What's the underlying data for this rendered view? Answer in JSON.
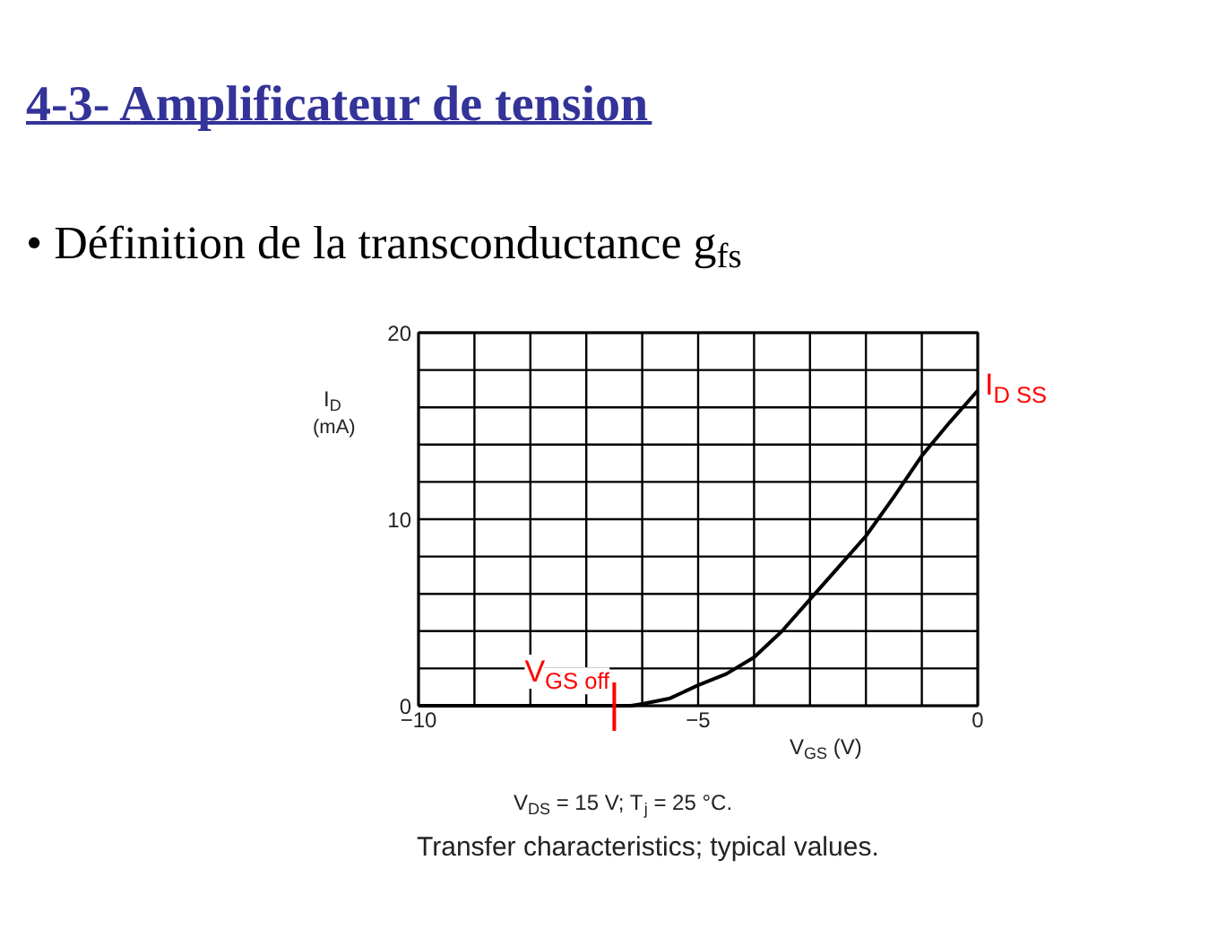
{
  "chart_data": {
    "type": "line",
    "title": "4-3- Amplificateur de tension",
    "subtitle": "• Définition de la transconductance g$_{fs}$",
    "xlabel": "V$_{GS}$ (V)",
    "ylabel": "I$_{D}$\n(mA)",
    "x": [
      -10,
      -7,
      -6.5,
      -6.2,
      -6,
      -5.5,
      -5,
      -4.5,
      -4,
      -3.5,
      -3,
      -2.5,
      -2,
      -1.5,
      -1,
      -0.5,
      0
    ],
    "series": [
      {
        "color": "#000000",
        "values": [
          0,
          0,
          0,
          0,
          0.1,
          0.4,
          1.1,
          1.7,
          2.6,
          4.0,
          5.7,
          7.4,
          9.1,
          11.2,
          13.4,
          15.2,
          16.9
        ]
      }
    ],
    "xlim": [
      -10,
      0
    ],
    "xticks": [
      -10,
      {
        "value": -9,
        "label": null
      },
      {
        "value": -8,
        "label": null
      },
      {
        "value": -7,
        "label": null
      },
      {
        "value": -6,
        "label": null
      },
      -5,
      {
        "value": -4,
        "label": null
      },
      {
        "value": -3,
        "label": null
      },
      {
        "value": -2,
        "label": null
      },
      {
        "value": -1,
        "label": null
      },
      0
    ],
    "ylim": [
      0,
      20
    ],
    "yticks": [
      0,
      {
        "value": 2,
        "label": null
      },
      {
        "value": 4,
        "label": null
      },
      {
        "value": 6,
        "label": null
      },
      {
        "value": 8,
        "label": null
      },
      10,
      {
        "value": 12,
        "label": null
      },
      {
        "value": 14,
        "label": null
      },
      {
        "value": 16,
        "label": null
      },
      {
        "value": 18,
        "label": null
      },
      20
    ],
    "grid": true,
    "ref_lines": [
      {
        "axis": "x",
        "value": -6.5,
        "label": "V$_{GS off}$",
        "color": "#ff0000"
      }
    ],
    "annotations": [
      {
        "text": "I$_{D SS}$",
        "x": 0,
        "y": 17
      },
      "V$_{DS}$ = 15 V; T$_{j}$ = 25 °C.",
      "Transfer characteristics; typical values."
    ]
  }
}
